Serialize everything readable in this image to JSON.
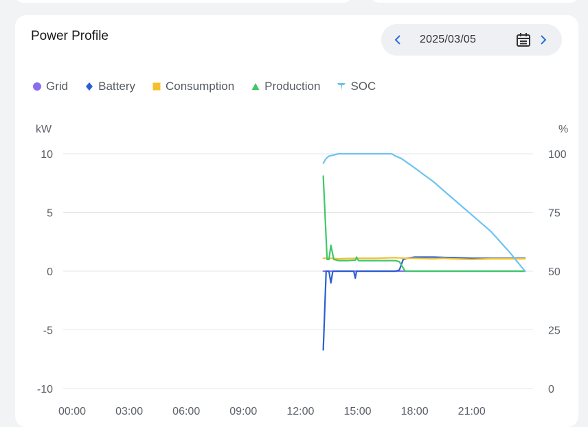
{
  "card": {
    "title": "Power Profile",
    "date": "2025/03/05"
  },
  "legend": [
    {
      "name": "Grid",
      "color": "#8a6cf0",
      "marker": "circle"
    },
    {
      "name": "Battery",
      "color": "#2b5fd0",
      "marker": "diamond"
    },
    {
      "name": "Consumption",
      "color": "#f5c02c",
      "marker": "square"
    },
    {
      "name": "Production",
      "color": "#3dc86a",
      "marker": "triangle"
    },
    {
      "name": "SOC",
      "color": "#6cc3f0",
      "marker": "pin"
    }
  ],
  "chart_data": {
    "type": "line",
    "x_axis": {
      "min": 0,
      "max": 24,
      "ticks": [
        "00:00",
        "03:00",
        "06:00",
        "09:00",
        "12:00",
        "15:00",
        "18:00",
        "21:00"
      ],
      "unit": "hour"
    },
    "y_left": {
      "label": "kW",
      "min": -10,
      "max": 10,
      "ticks": [
        10,
        5,
        0,
        -5,
        -10
      ]
    },
    "y_right": {
      "label": "%",
      "min": 0,
      "max": 100,
      "ticks": [
        100,
        75,
        50,
        25,
        0
      ]
    },
    "grid": true,
    "legend_position": "top-left",
    "series": [
      {
        "name": "Grid",
        "axis": "left",
        "color": "#8a6cf0",
        "points": [
          [
            13.2,
            0.0
          ],
          [
            23.8,
            0.0
          ]
        ]
      },
      {
        "name": "Battery",
        "axis": "left",
        "color": "#2b5fd0",
        "points": [
          [
            13.2,
            -6.7
          ],
          [
            13.35,
            0.0
          ],
          [
            13.5,
            0.0
          ],
          [
            13.6,
            -1.0
          ],
          [
            13.7,
            0.0
          ],
          [
            14.5,
            0.0
          ],
          [
            14.8,
            0.0
          ],
          [
            14.88,
            -0.6
          ],
          [
            14.95,
            0.0
          ],
          [
            16.0,
            0.0
          ],
          [
            17.0,
            0.0
          ],
          [
            17.2,
            0.1
          ],
          [
            17.4,
            1.0
          ],
          [
            17.6,
            1.1
          ],
          [
            18.0,
            1.2
          ],
          [
            18.5,
            1.2
          ],
          [
            19.0,
            1.2
          ],
          [
            20.0,
            1.15
          ],
          [
            21.0,
            1.1
          ],
          [
            22.0,
            1.1
          ],
          [
            23.0,
            1.1
          ],
          [
            23.8,
            1.1
          ]
        ]
      },
      {
        "name": "Consumption",
        "axis": "left",
        "color": "#f5c02c",
        "points": [
          [
            13.2,
            1.1
          ],
          [
            13.6,
            1.1
          ],
          [
            14.0,
            1.05
          ],
          [
            15.0,
            1.1
          ],
          [
            16.0,
            1.1
          ],
          [
            17.0,
            1.15
          ],
          [
            17.5,
            1.1
          ],
          [
            18.0,
            1.1
          ],
          [
            19.0,
            1.05
          ],
          [
            19.5,
            1.1
          ],
          [
            20.0,
            1.05
          ],
          [
            21.0,
            1.0
          ],
          [
            22.0,
            1.05
          ],
          [
            23.0,
            1.05
          ],
          [
            23.8,
            1.05
          ]
        ]
      },
      {
        "name": "Production",
        "axis": "left",
        "color": "#3dc86a",
        "points": [
          [
            13.2,
            8.1
          ],
          [
            13.4,
            1.0
          ],
          [
            13.5,
            1.0
          ],
          [
            13.6,
            2.2
          ],
          [
            13.75,
            1.0
          ],
          [
            14.0,
            0.9
          ],
          [
            14.5,
            0.9
          ],
          [
            14.9,
            0.95
          ],
          [
            14.95,
            1.2
          ],
          [
            15.05,
            0.9
          ],
          [
            16.0,
            0.9
          ],
          [
            17.0,
            0.9
          ],
          [
            17.2,
            0.8
          ],
          [
            17.5,
            0.0
          ],
          [
            18.0,
            0.0
          ],
          [
            20.0,
            0.0
          ],
          [
            22.0,
            0.0
          ],
          [
            23.8,
            0.0
          ]
        ]
      },
      {
        "name": "SOC",
        "axis": "right",
        "color": "#6cc3f0",
        "points": [
          [
            13.2,
            96
          ],
          [
            13.35,
            98
          ],
          [
            13.5,
            99
          ],
          [
            14.0,
            100
          ],
          [
            16.0,
            100
          ],
          [
            16.8,
            100
          ],
          [
            17.0,
            99
          ],
          [
            17.3,
            98
          ],
          [
            18.0,
            94
          ],
          [
            19.0,
            88
          ],
          [
            20.0,
            81
          ],
          [
            21.0,
            74
          ],
          [
            22.0,
            67
          ],
          [
            23.0,
            58
          ],
          [
            23.6,
            52
          ],
          [
            23.8,
            50
          ]
        ]
      }
    ]
  }
}
